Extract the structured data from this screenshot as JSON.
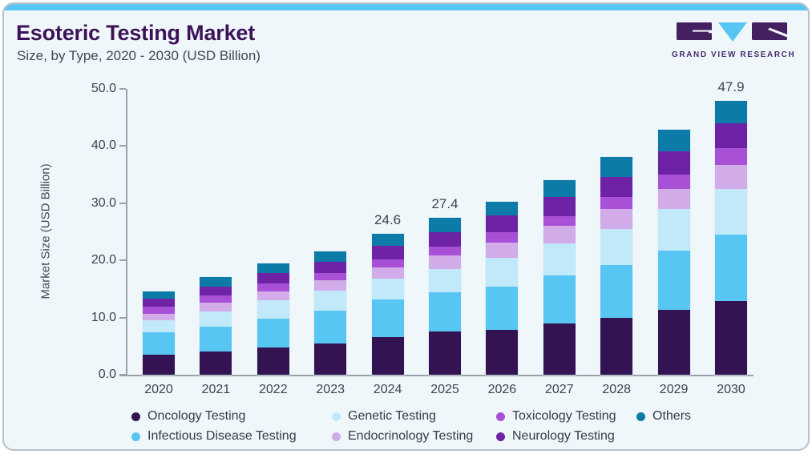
{
  "header": {
    "title": "Esoteric Testing Market",
    "subtitle": "Size, by Type, 2020 - 2030 (USD Billion)",
    "logo": {
      "brand": "GRAND VIEW RESEARCH"
    }
  },
  "chart_data": {
    "type": "bar",
    "stacked": true,
    "title": "Esoteric Testing Market Size, by Type, 2020 - 2030 (USD Billion)",
    "xlabel": "",
    "ylabel": "Market Size (USD Billion)",
    "ylim": [
      0,
      50
    ],
    "ytick_step": 10,
    "yticks": [
      "0.0",
      "10.0",
      "20.0",
      "30.0",
      "40.0",
      "50.0"
    ],
    "grid": false,
    "legend_position": "bottom",
    "categories": [
      "2020",
      "2021",
      "2022",
      "2023",
      "2024",
      "2025",
      "2026",
      "2027",
      "2028",
      "2029",
      "2030"
    ],
    "series": [
      {
        "name": "Oncology Testing",
        "color": "#341353",
        "values": [
          3.5,
          4.1,
          4.8,
          5.5,
          6.6,
          7.6,
          7.8,
          8.9,
          9.9,
          11.3,
          12.9
        ]
      },
      {
        "name": "Infectious Disease Testing",
        "color": "#58c6f2",
        "values": [
          3.9,
          4.3,
          5.0,
          5.7,
          6.6,
          6.8,
          7.6,
          8.4,
          9.3,
          10.4,
          11.6
        ]
      },
      {
        "name": "Genetic Testing",
        "color": "#c2e9fa",
        "values": [
          2.1,
          2.7,
          3.2,
          3.5,
          3.6,
          4.1,
          5.0,
          5.6,
          6.2,
          7.2,
          7.9
        ]
      },
      {
        "name": "Endocrinology Testing",
        "color": "#d2abe9",
        "values": [
          1.2,
          1.5,
          1.6,
          1.8,
          2.0,
          2.3,
          2.7,
          3.1,
          3.5,
          3.5,
          4.3
        ]
      },
      {
        "name": "Toxicology Testing",
        "color": "#a951d6",
        "values": [
          1.2,
          1.2,
          1.3,
          1.2,
          1.4,
          1.6,
          1.8,
          1.7,
          2.2,
          2.6,
          2.9
        ]
      },
      {
        "name": "Neurology Testing",
        "color": "#6e22a5",
        "values": [
          1.4,
          1.6,
          1.8,
          2.0,
          2.3,
          2.5,
          3.0,
          3.3,
          3.5,
          4.0,
          4.3
        ]
      },
      {
        "name": "Others",
        "color": "#0d7ba8",
        "values": [
          1.3,
          1.6,
          1.8,
          1.9,
          2.1,
          2.5,
          2.3,
          3.0,
          3.4,
          3.8,
          4.0
        ]
      }
    ],
    "annotations": [
      {
        "category": "2024",
        "text": "24.6"
      },
      {
        "category": "2025",
        "text": "27.4"
      },
      {
        "category": "2030",
        "text": "47.9"
      }
    ]
  },
  "colors": {
    "accent_strip": "#58c6f2",
    "card_background": "#f0f7fb",
    "title_purple": "#3c1256",
    "axis_line": "#9aa1a8",
    "logo_purple": "#452061",
    "logo_blue": "#58c6f2"
  }
}
